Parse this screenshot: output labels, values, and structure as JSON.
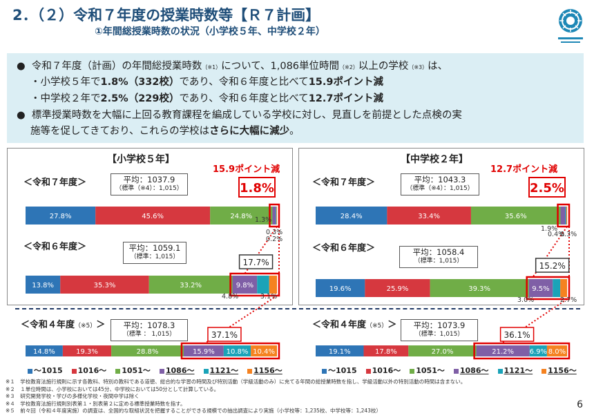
{
  "header": {
    "title": "2．（２）令和７年度の授業時数等【Ｒ７計画】",
    "subtitle": "①年間総授業時数の状況（小学校５年、中学校２年）"
  },
  "summary": {
    "line1": "令和７年度（計画）の年間総授業時数",
    "note1": "（※1）",
    "line1b": "について、1,086単位時間",
    "note2": "（※2）",
    "line1c": "以上の学校",
    "note3": "（※3）",
    "line1d": "は、",
    "line2a": "・小学校５年で",
    "line2b": "1.8%（332校）",
    "line2c": "であり、令和６年度と比べて",
    "line2d": "15.9ポイント減",
    "line3a": "・中学校２年で",
    "line3b": "2.5%（229校）",
    "line3c": "であり、令和６年度と比べて",
    "line3d": "12.7ポイント減",
    "line4": "標準授業時数を大幅に上回る教育課程を編成している学校に対し、見直しを前提とした点検の実",
    "line5a": "施等を促してきており、これらの学校は",
    "line5b": "さらに大幅に減少",
    "line5c": "。"
  },
  "panels": {
    "elementary": {
      "title": "【小学校５年】",
      "reduction": "15.9ポイント減",
      "r7": {
        "label": "＜令和７年度＞",
        "avg": "平均：1037.9",
        "std": "（標準（※4）：1,015）",
        "highlight": "1.8%"
      },
      "r6": {
        "label": "＜令和６年度＞",
        "avg": "平均：1059.1",
        "std": "（標準：1,015）",
        "highlight": "17.7%"
      },
      "r4": {
        "label": "＜令和４年度",
        "note": "（※5）",
        "label_end": "＞",
        "avg": "平均：1078.3",
        "std": "（標準 ： 1,015）",
        "highlight": "37.1%"
      }
    },
    "junior": {
      "title": "【中学校２年】",
      "reduction": "12.7ポイント減",
      "r7": {
        "label": "＜令和７年度＞",
        "avg": "平均：1043.3",
        "std": "（標準（※4）：1,015）",
        "highlight": "2.5%"
      },
      "r6": {
        "label": "＜令和６年度＞",
        "avg": "平均：1058.4",
        "std": "（標準：1,015）",
        "highlight": "15.2%"
      },
      "r4": {
        "label": "＜令和４年度",
        "note": "（※5）",
        "label_end": "＞",
        "avg": "平均：1073.9",
        "std": "（標準：1,015）",
        "highlight": "36.1%"
      }
    }
  },
  "legend": [
    "～1015",
    "1016～",
    "1051～",
    "1086～",
    "1121～",
    "1156～"
  ],
  "colors": {
    "c1": "#2e75b6",
    "c2": "#d6383f",
    "c3": "#70ad47",
    "c4": "#7f5fa6",
    "c5": "#1aa3b8",
    "c6": "#f58220",
    "title": "#1f4e79",
    "highlight": "#e00000"
  },
  "chart_data": [
    {
      "type": "bar",
      "title": "【小学校５年】",
      "categories": [
        "令和７年度",
        "令和６年度",
        "令和４年度"
      ],
      "series": [
        {
          "name": "～1015",
          "values": [
            27.8,
            13.8,
            14.8
          ]
        },
        {
          "name": "1016～",
          "values": [
            45.6,
            35.3,
            19.3
          ]
        },
        {
          "name": "1051～",
          "values": [
            24.8,
            33.2,
            28.8
          ]
        },
        {
          "name": "1086～",
          "values": [
            1.3,
            9.8,
            15.9
          ]
        },
        {
          "name": "1121～",
          "values": [
            0.3,
            4.8,
            10.8
          ]
        },
        {
          "name": "1156～",
          "values": [
            0.2,
            3.1,
            10.4
          ]
        }
      ]
    },
    {
      "type": "bar",
      "title": "【中学校２年】",
      "categories": [
        "令和７年度",
        "令和６年度",
        "令和４年度"
      ],
      "series": [
        {
          "name": "～1015",
          "values": [
            28.4,
            19.6,
            19.1
          ]
        },
        {
          "name": "1016～",
          "values": [
            33.4,
            25.9,
            17.8
          ]
        },
        {
          "name": "1051～",
          "values": [
            35.6,
            39.3,
            27.0
          ]
        },
        {
          "name": "1086～",
          "values": [
            1.9,
            9.5,
            21.2
          ]
        },
        {
          "name": "1121～",
          "values": [
            0.4,
            3.0,
            6.9
          ]
        },
        {
          "name": "1156～",
          "values": [
            0.3,
            2.7,
            8.0
          ]
        }
      ]
    }
  ],
  "notes": [
    "※１　学校教育法施行規則に示す各教科、特別の教科である道徳、総合的な学習の時間及び特別活動（学級活動のみ）に充てる年間の総授業時数を指し、学級活動以外の特別活動の時間は含まない。",
    "※２　１単位時間は、小学校においては45分、中学校においては50分として計算している。",
    "※３　研究開発学校・学びの多様化学校・夜間中学は除く",
    "※４　学校教育法施行規則別表第１・別表第２に定める標準授業時数を指す。",
    "※５　前々回（令和４年度実施）の調査は、全国的な取組状況を把握することができる規模での抽出調査により実施（小学校等：1,235校、中学校等：1,243校）"
  ],
  "page_number": "6"
}
